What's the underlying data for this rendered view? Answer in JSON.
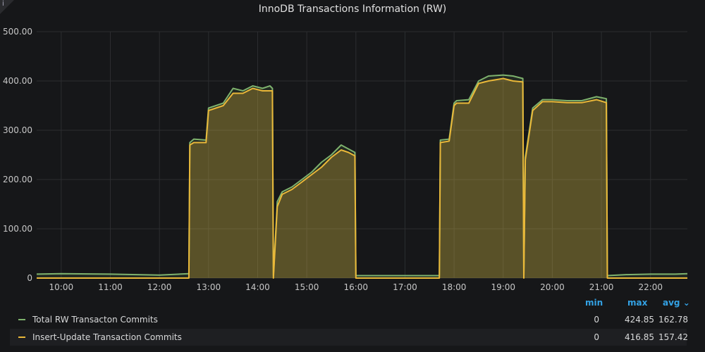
{
  "panel": {
    "title": "InnoDB Transactions Information (RW)",
    "info_icon": "info-icon"
  },
  "legend": {
    "headers": {
      "min": "min",
      "max": "max",
      "avg": "avg ⌄"
    },
    "items": [
      {
        "name": "Total RW Transacton Commits",
        "color": "#7eb26d",
        "min": "0",
        "max": "424.85",
        "avg": "162.78"
      },
      {
        "name": "Insert-Update Transaction Commits",
        "color": "#eab839",
        "min": "0",
        "max": "416.85",
        "avg": "157.42"
      }
    ]
  },
  "chart_data": {
    "type": "area",
    "title": "InnoDB Transactions Information (RW)",
    "ylim": [
      0,
      500
    ],
    "yticks": [
      "0",
      "100.00",
      "200.00",
      "300.00",
      "400.00",
      "500.00"
    ],
    "xticks": [
      "10:00",
      "11:00",
      "12:00",
      "13:00",
      "14:00",
      "15:00",
      "16:00",
      "17:00",
      "18:00",
      "19:00",
      "20:00",
      "21:00",
      "22:00"
    ],
    "x_hours": [
      9.5,
      10.0,
      11.0,
      12.0,
      12.6,
      12.62,
      12.7,
      12.95,
      13.0,
      13.3,
      13.5,
      13.7,
      13.9,
      14.1,
      14.25,
      14.3,
      14.32,
      14.4,
      14.5,
      14.7,
      14.9,
      15.1,
      15.3,
      15.5,
      15.7,
      15.85,
      15.98,
      16.0,
      16.5,
      17.0,
      17.5,
      17.7,
      17.72,
      17.9,
      18.0,
      18.05,
      18.3,
      18.5,
      18.7,
      19.0,
      19.2,
      19.4,
      19.42,
      19.45,
      19.6,
      19.8,
      20.0,
      20.3,
      20.6,
      20.9,
      21.1,
      21.12,
      21.5,
      22.0,
      22.5,
      22.75
    ],
    "series": [
      {
        "name": "Total RW Transacton Commits",
        "color": "#7eb26d",
        "values": [
          8,
          9,
          8,
          6,
          9,
          275,
          282,
          280,
          345,
          355,
          385,
          380,
          390,
          385,
          390,
          385,
          5,
          155,
          175,
          185,
          200,
          215,
          235,
          250,
          270,
          262,
          255,
          5,
          5,
          5,
          5,
          5,
          280,
          282,
          355,
          360,
          362,
          400,
          410,
          412,
          410,
          405,
          5,
          245,
          345,
          362,
          362,
          360,
          360,
          368,
          364,
          5,
          7,
          8,
          8,
          9
        ]
      },
      {
        "name": "Insert-Update Transaction Commits",
        "color": "#eab839",
        "values": [
          0,
          0,
          0,
          0,
          0,
          270,
          275,
          275,
          340,
          350,
          375,
          375,
          385,
          380,
          380,
          380,
          0,
          145,
          170,
          180,
          195,
          210,
          225,
          245,
          260,
          255,
          248,
          0,
          0,
          0,
          0,
          0,
          275,
          278,
          350,
          355,
          355,
          395,
          400,
          405,
          400,
          398,
          0,
          240,
          340,
          358,
          358,
          356,
          356,
          362,
          356,
          0,
          0,
          0,
          0,
          0
        ]
      }
    ],
    "grid": true,
    "legend_placement": "bottom"
  }
}
